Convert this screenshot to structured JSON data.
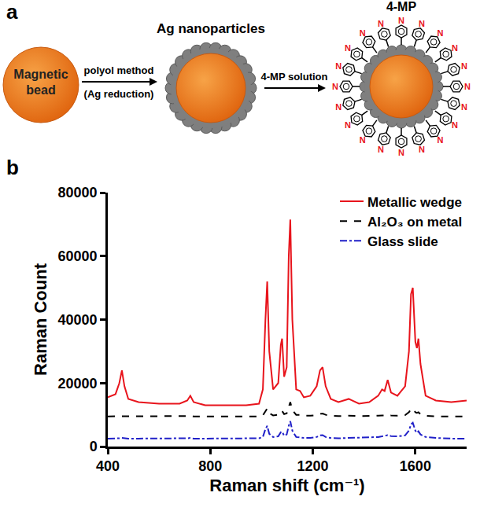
{
  "panel_labels": [
    "a",
    "b"
  ],
  "diagram": {
    "nodes": [
      {
        "label": [
          "Magnetic",
          "bead"
        ]
      },
      {
        "label": "Ag nanoparticles"
      },
      {
        "label": "4-MP",
        "atom": "N"
      }
    ],
    "arrows": [
      {
        "label": "polyol method",
        "sublabel": "(Ag reduction)"
      },
      {
        "label": "4-MP solution"
      }
    ]
  },
  "chart_data": {
    "type": "line",
    "xlabel": "Raman shift (cm⁻¹)",
    "ylabel": "Raman Count",
    "x": [
      400,
      430,
      445,
      455,
      465,
      480,
      520,
      600,
      680,
      710,
      722,
      735,
      780,
      860,
      940,
      990,
      1005,
      1015,
      1022,
      1030,
      1045,
      1065,
      1075,
      1080,
      1088,
      1098,
      1106,
      1112,
      1120,
      1135,
      1150,
      1165,
      1190,
      1215,
      1228,
      1238,
      1250,
      1270,
      1300,
      1340,
      1380,
      1420,
      1455,
      1470,
      1480,
      1492,
      1505,
      1530,
      1560,
      1575,
      1583,
      1590,
      1600,
      1606,
      1612,
      1620,
      1640,
      1680,
      1740,
      1800
    ],
    "series": [
      {
        "name": "Metallic wedge",
        "color": "#e8141c",
        "line_style": "solid",
        "values": [
          15500,
          16500,
          20000,
          24000,
          19000,
          15000,
          14000,
          13500,
          13500,
          14500,
          16000,
          14000,
          13000,
          13000,
          13000,
          13500,
          18000,
          40000,
          52000,
          30000,
          18000,
          20000,
          32000,
          34000,
          22000,
          25000,
          60000,
          71500,
          40000,
          18000,
          17500,
          15500,
          16000,
          19000,
          24000,
          25000,
          19000,
          15000,
          14000,
          15000,
          13500,
          14000,
          16000,
          18000,
          17500,
          21000,
          17000,
          16000,
          19000,
          30000,
          48000,
          50000,
          33000,
          31000,
          34000,
          26000,
          16000,
          14500,
          14000,
          14500
        ]
      },
      {
        "name": "Al₂O₃ on metal",
        "color": "#000000",
        "line_style": "dash",
        "values": [
          9500,
          9500,
          9500,
          9600,
          9500,
          9500,
          9500,
          9500,
          9500,
          9600,
          9700,
          9500,
          9500,
          9500,
          9500,
          9500,
          9800,
          11000,
          12000,
          10500,
          9800,
          10000,
          11000,
          11200,
          10200,
          10500,
          12500,
          14000,
          11500,
          10000,
          10000,
          9700,
          9700,
          9900,
          10300,
          10400,
          10000,
          9700,
          9600,
          9700,
          9600,
          9600,
          9700,
          9800,
          9800,
          10000,
          9800,
          9700,
          9900,
          10800,
          11800,
          12000,
          10800,
          10600,
          10800,
          10200,
          9700,
          9500,
          9500,
          9500
        ]
      },
      {
        "name": "Glass slide",
        "color": "#2020c8",
        "line_style": "dashdot",
        "values": [
          2500,
          2500,
          2600,
          2700,
          2600,
          2500,
          2500,
          2500,
          2500,
          2600,
          2700,
          2500,
          2500,
          2500,
          2500,
          2600,
          3000,
          5500,
          6500,
          4000,
          3000,
          3200,
          4500,
          4700,
          3400,
          3800,
          6500,
          8000,
          5000,
          3000,
          2900,
          2700,
          2700,
          3000,
          3500,
          3600,
          3000,
          2700,
          2600,
          2700,
          2700,
          2800,
          3000,
          3200,
          3300,
          3600,
          3300,
          3200,
          3500,
          5000,
          7000,
          7500,
          5000,
          4300,
          4800,
          3800,
          3000,
          2700,
          2500,
          2500
        ]
      }
    ],
    "xlim": [
      400,
      1800
    ],
    "xticks": [
      400,
      800,
      1200,
      1600
    ],
    "ylim": [
      0,
      80000
    ],
    "yticks": [
      0,
      20000,
      40000,
      60000,
      80000
    ],
    "grid": false,
    "legend": "top right"
  }
}
